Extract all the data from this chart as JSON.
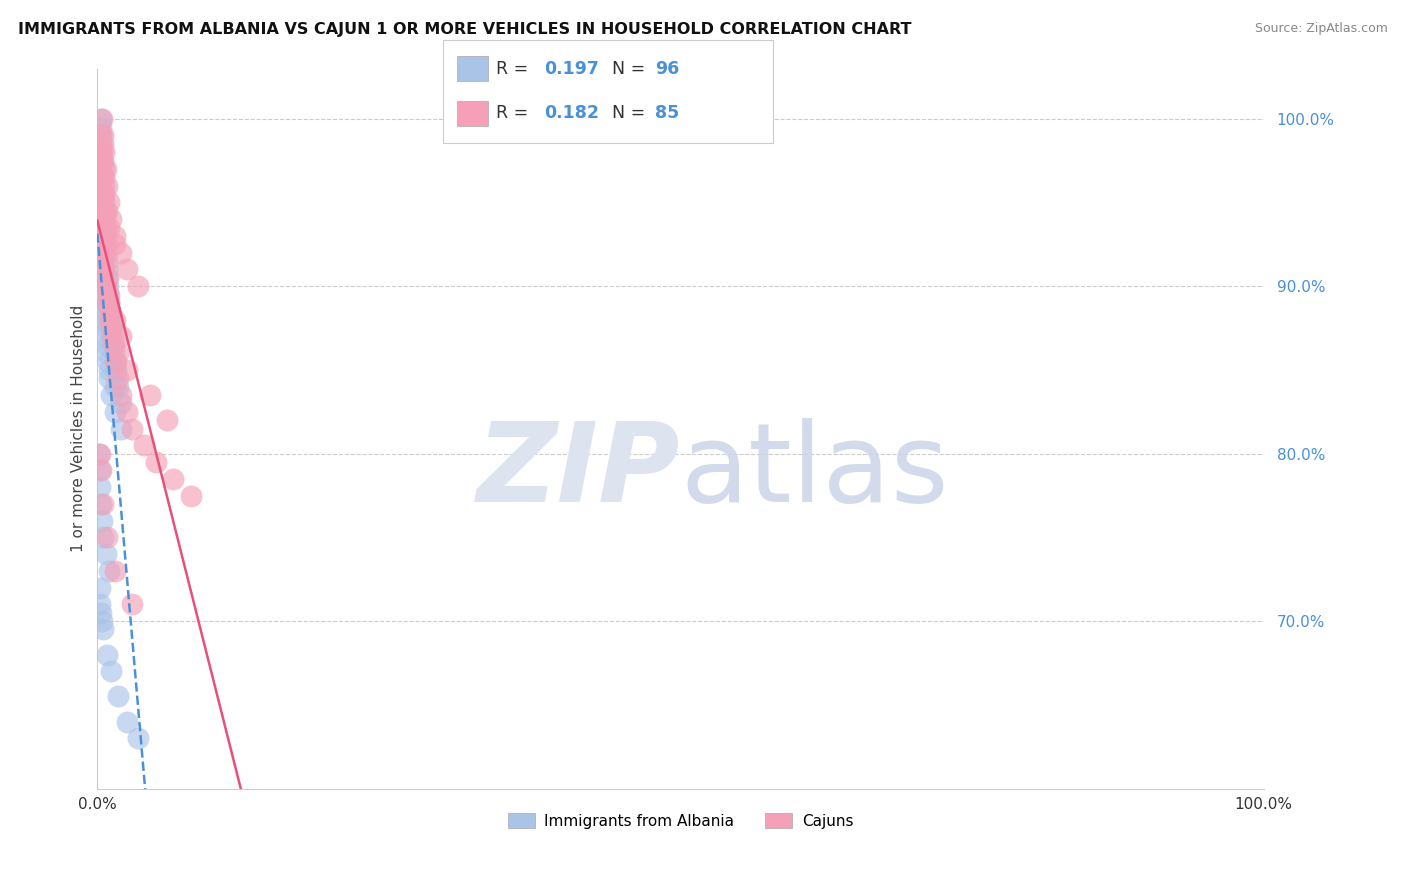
{
  "title": "IMMIGRANTS FROM ALBANIA VS CAJUN 1 OR MORE VEHICLES IN HOUSEHOLD CORRELATION CHART",
  "source": "Source: ZipAtlas.com",
  "ylabel": "1 or more Vehicles in Household",
  "right_yticks": [
    70.0,
    80.0,
    90.0,
    100.0
  ],
  "legend_r1": "0.197",
  "legend_n1": "96",
  "legend_r2": "0.182",
  "legend_n2": "85",
  "color_blue": "#aac4e8",
  "color_pink": "#f5a0b8",
  "color_blue_line": "#4a90d9",
  "color_pink_line": "#e8507a",
  "albania_x": [
    0.05,
    0.08,
    0.12,
    0.15,
    0.18,
    0.2,
    0.22,
    0.25,
    0.28,
    0.3,
    0.32,
    0.35,
    0.38,
    0.4,
    0.42,
    0.45,
    0.48,
    0.5,
    0.52,
    0.55,
    0.58,
    0.6,
    0.65,
    0.7,
    0.75,
    0.8,
    0.85,
    0.9,
    0.95,
    1.0,
    1.05,
    1.1,
    1.15,
    1.2,
    1.3,
    1.4,
    1.5,
    1.6,
    1.8,
    2.0,
    0.1,
    0.12,
    0.15,
    0.18,
    0.2,
    0.22,
    0.25,
    0.28,
    0.3,
    0.35,
    0.4,
    0.45,
    0.5,
    0.55,
    0.6,
    0.7,
    0.8,
    0.9,
    1.0,
    1.2,
    1.5,
    2.0,
    0.08,
    0.1,
    0.12,
    0.15,
    0.18,
    0.2,
    0.22,
    0.25,
    0.3,
    0.35,
    0.4,
    0.5,
    0.6,
    0.8,
    1.0,
    1.5,
    0.15,
    0.2,
    0.25,
    0.3,
    0.4,
    0.5,
    0.7,
    1.0,
    0.2,
    0.25,
    0.3,
    0.4,
    0.5,
    0.8,
    1.2,
    1.8,
    2.5,
    3.5
  ],
  "albania_y": [
    91.5,
    92.0,
    93.0,
    94.0,
    95.0,
    96.0,
    97.0,
    98.0,
    98.5,
    99.0,
    99.5,
    100.0,
    97.5,
    96.5,
    95.5,
    94.5,
    93.5,
    92.5,
    91.5,
    95.0,
    96.0,
    97.0,
    94.0,
    93.0,
    92.0,
    91.0,
    90.5,
    90.0,
    89.5,
    89.0,
    88.5,
    88.0,
    87.5,
    87.0,
    86.5,
    86.0,
    85.5,
    85.0,
    84.0,
    83.0,
    92.0,
    93.0,
    91.0,
    90.0,
    95.5,
    96.5,
    97.5,
    98.5,
    94.5,
    93.5,
    92.5,
    91.5,
    90.5,
    89.5,
    88.5,
    87.5,
    86.5,
    85.5,
    84.5,
    83.5,
    82.5,
    81.5,
    99.0,
    98.0,
    97.0,
    96.0,
    95.0,
    94.0,
    93.0,
    92.0,
    91.0,
    90.0,
    89.0,
    88.0,
    87.0,
    86.0,
    85.0,
    84.0,
    80.0,
    79.0,
    78.0,
    77.0,
    76.0,
    75.0,
    74.0,
    73.0,
    72.0,
    71.0,
    70.5,
    70.0,
    69.5,
    68.0,
    67.0,
    65.5,
    64.0,
    63.0
  ],
  "cajun_x": [
    0.1,
    0.15,
    0.2,
    0.25,
    0.3,
    0.35,
    0.4,
    0.45,
    0.5,
    0.55,
    0.6,
    0.65,
    0.7,
    0.75,
    0.8,
    0.9,
    1.0,
    1.1,
    1.2,
    1.4,
    1.6,
    1.8,
    2.0,
    2.5,
    3.0,
    4.0,
    5.0,
    6.5,
    8.0,
    0.2,
    0.25,
    0.3,
    0.4,
    0.5,
    0.6,
    0.7,
    0.8,
    1.0,
    1.2,
    1.5,
    2.0,
    2.5,
    3.5,
    0.15,
    0.2,
    0.25,
    0.3,
    0.4,
    0.5,
    0.6,
    0.8,
    1.0,
    1.5,
    0.1,
    0.15,
    0.2,
    0.25,
    0.3,
    0.4,
    0.5,
    0.7,
    1.0,
    1.5,
    2.0,
    0.12,
    0.18,
    0.22,
    0.28,
    0.35,
    0.45,
    0.55,
    0.65,
    0.8,
    1.0,
    1.3,
    1.8,
    2.5,
    4.5,
    6.0,
    0.2,
    0.3,
    0.5,
    0.8,
    1.5,
    3.0
  ],
  "cajun_y": [
    94.0,
    95.0,
    96.0,
    97.0,
    98.0,
    99.0,
    100.0,
    98.5,
    97.5,
    96.5,
    95.5,
    94.5,
    93.5,
    92.5,
    91.5,
    90.5,
    89.5,
    88.5,
    87.5,
    86.5,
    85.5,
    84.5,
    83.5,
    82.5,
    81.5,
    80.5,
    79.5,
    78.5,
    77.5,
    95.0,
    96.0,
    97.0,
    98.0,
    99.0,
    98.0,
    97.0,
    96.0,
    95.0,
    94.0,
    93.0,
    92.0,
    91.0,
    90.0,
    93.5,
    94.5,
    95.5,
    96.5,
    97.5,
    96.5,
    95.5,
    94.5,
    93.5,
    92.5,
    97.0,
    96.0,
    95.0,
    94.0,
    93.0,
    92.0,
    91.0,
    90.0,
    89.0,
    88.0,
    87.0,
    91.5,
    92.5,
    93.5,
    94.5,
    93.0,
    92.0,
    91.0,
    90.0,
    89.0,
    88.0,
    87.0,
    86.0,
    85.0,
    83.5,
    82.0,
    80.0,
    79.0,
    77.0,
    75.0,
    73.0,
    71.0
  ]
}
